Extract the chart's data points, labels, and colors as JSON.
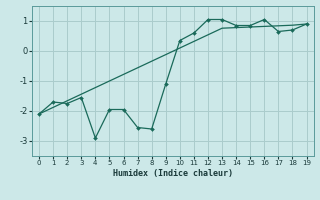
{
  "title": "",
  "xlabel": "Humidex (Indice chaleur)",
  "bg_color": "#cce8e8",
  "grid_color": "#aacccc",
  "line_color": "#1a6a5a",
  "x": [
    0,
    1,
    2,
    3,
    4,
    5,
    6,
    7,
    8,
    9,
    10,
    11,
    12,
    13,
    14,
    15,
    16,
    17,
    18,
    19
  ],
  "y_jagged": [
    -2.1,
    -1.7,
    -1.75,
    -1.55,
    -2.9,
    -1.95,
    -1.95,
    -2.55,
    -2.6,
    -1.1,
    0.35,
    0.6,
    1.05,
    1.05,
    0.85,
    0.85,
    1.05,
    0.65,
    0.7,
    0.9
  ],
  "y_linear": [
    -2.1,
    -1.88,
    -1.66,
    -1.44,
    -1.22,
    -1.0,
    -0.78,
    -0.56,
    -0.34,
    -0.12,
    0.1,
    0.32,
    0.54,
    0.76,
    0.78,
    0.8,
    0.82,
    0.84,
    0.86,
    0.9
  ],
  "ylim": [
    -3.5,
    1.5
  ],
  "xlim": [
    -0.5,
    19.5
  ],
  "yticks": [
    -3,
    -2,
    -1,
    0,
    1
  ],
  "xticks": [
    0,
    1,
    2,
    3,
    4,
    5,
    6,
    7,
    8,
    9,
    10,
    11,
    12,
    13,
    14,
    15,
    16,
    17,
    18,
    19
  ]
}
